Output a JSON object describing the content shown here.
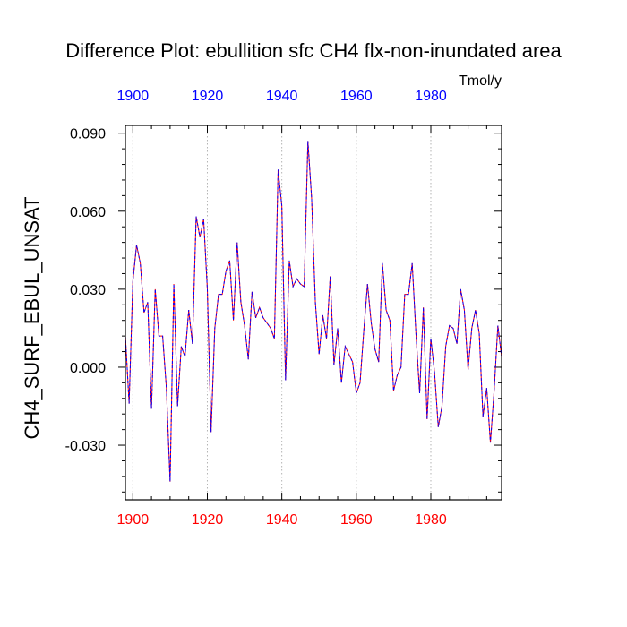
{
  "chart_data": {
    "type": "line",
    "title": "Difference Plot: ebullition sfc CH4 flx-non-inundated area",
    "units": "Tmol/y",
    "ylabel": "CH4_SURF_EBUL_UNSAT",
    "xlim": [
      1898,
      1999
    ],
    "ylim": [
      -0.051,
      0.093
    ],
    "x_ticks": [
      1900,
      1920,
      1940,
      1960,
      1980
    ],
    "y_ticks": [
      0.09,
      0.06,
      0.03,
      0.0,
      -0.03
    ],
    "y_tick_labels": [
      "0.090",
      "0.060",
      "0.030",
      "0.000",
      "-0.030"
    ],
    "grid": "vertical dotted at major x ticks",
    "colors": {
      "bottom_axis_labels": "#ff0000",
      "top_axis_labels": "#0000ff",
      "series_a": "#ff0000",
      "series_b": "#0000ff",
      "grid": "#b4b4b4",
      "frame": "#000000"
    },
    "series": [
      {
        "name": "difference",
        "x": [
          1898,
          1899,
          1900,
          1901,
          1902,
          1903,
          1904,
          1905,
          1906,
          1907,
          1908,
          1909,
          1910,
          1911,
          1912,
          1913,
          1914,
          1915,
          1916,
          1917,
          1918,
          1919,
          1920,
          1921,
          1922,
          1923,
          1924,
          1925,
          1926,
          1927,
          1928,
          1929,
          1930,
          1931,
          1932,
          1933,
          1934,
          1935,
          1936,
          1937,
          1938,
          1939,
          1940,
          1941,
          1942,
          1943,
          1944,
          1945,
          1946,
          1947,
          1948,
          1949,
          1950,
          1951,
          1952,
          1953,
          1954,
          1955,
          1956,
          1957,
          1958,
          1959,
          1960,
          1961,
          1962,
          1963,
          1964,
          1965,
          1966,
          1967,
          1968,
          1969,
          1970,
          1971,
          1972,
          1973,
          1974,
          1975,
          1976,
          1977,
          1978,
          1979,
          1980,
          1981,
          1982,
          1983,
          1984,
          1985,
          1986,
          1987,
          1988,
          1989,
          1990,
          1991,
          1992,
          1993,
          1994,
          1995,
          1996,
          1997,
          1998,
          1999
        ],
        "y": [
          0.012,
          -0.014,
          0.033,
          0.047,
          0.04,
          0.021,
          0.025,
          -0.016,
          0.03,
          0.012,
          0.012,
          -0.008,
          -0.044,
          0.032,
          -0.015,
          0.008,
          0.004,
          0.022,
          0.009,
          0.058,
          0.05,
          0.057,
          0.03,
          -0.025,
          0.015,
          0.028,
          0.028,
          0.037,
          0.041,
          0.018,
          0.048,
          0.025,
          0.016,
          0.003,
          0.029,
          0.019,
          0.023,
          0.019,
          0.017,
          0.015,
          0.011,
          0.076,
          0.062,
          -0.005,
          0.041,
          0.031,
          0.034,
          0.032,
          0.031,
          0.087,
          0.065,
          0.025,
          0.005,
          0.02,
          0.011,
          0.035,
          0.001,
          0.015,
          -0.006,
          0.008,
          0.005,
          0.002,
          -0.01,
          -0.006,
          0.014,
          0.032,
          0.017,
          0.007,
          0.002,
          0.04,
          0.022,
          0.018,
          -0.009,
          -0.003,
          0.0,
          0.028,
          0.028,
          0.04,
          0.013,
          -0.01,
          0.023,
          -0.02,
          0.011,
          -0.002,
          -0.023,
          -0.015,
          0.008,
          0.016,
          0.015,
          0.009,
          0.03,
          0.022,
          -0.001,
          0.015,
          0.022,
          0.013,
          -0.019,
          -0.008,
          -0.029,
          -0.009,
          0.016,
          0.004
        ]
      }
    ]
  }
}
